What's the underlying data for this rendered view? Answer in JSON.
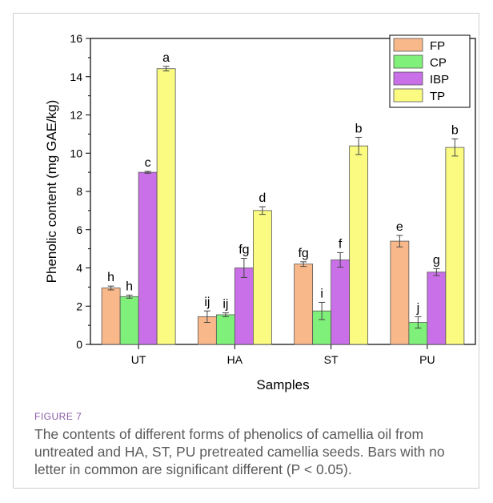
{
  "figure": {
    "label": "FIGURE 7",
    "caption": "The contents of different forms of phenolics of camellia oil from untreated and HA, ST, PU pretreated camellia seeds. Bars with no letter in common are significant different (P < 0.05)."
  },
  "chart_data": {
    "type": "bar",
    "xlabel": "Samples",
    "ylabel": "Phenolic content (mg GAE/kg)",
    "ylim": [
      0,
      16
    ],
    "yticks": [
      0,
      2,
      4,
      6,
      8,
      10,
      12,
      14,
      16
    ],
    "categories": [
      "UT",
      "HA",
      "ST",
      "PU"
    ],
    "legend_position": "top-right",
    "grid": false,
    "series": [
      {
        "name": "FP",
        "color": "#f9b88a",
        "values": [
          2.95,
          1.45,
          4.2,
          5.4
        ],
        "errors": [
          0.1,
          0.3,
          0.12,
          0.3
        ],
        "letters": [
          "h",
          "ij",
          "fg",
          "e"
        ]
      },
      {
        "name": "CP",
        "color": "#7ff07a",
        "values": [
          2.5,
          1.55,
          1.75,
          1.15
        ],
        "errors": [
          0.08,
          0.1,
          0.45,
          0.3
        ],
        "letters": [
          "h",
          "ij",
          "i",
          "j"
        ]
      },
      {
        "name": "IBP",
        "color": "#c96fe8",
        "values": [
          9.0,
          4.0,
          4.42,
          3.78
        ],
        "errors": [
          0.05,
          0.5,
          0.38,
          0.18
        ],
        "letters": [
          "c",
          "fg",
          "f",
          "g"
        ]
      },
      {
        "name": "TP",
        "color": "#fbfb82",
        "values": [
          14.42,
          7.0,
          10.38,
          10.3
        ],
        "errors": [
          0.12,
          0.2,
          0.45,
          0.45
        ],
        "letters": [
          "a",
          "d",
          "b",
          "b"
        ]
      }
    ]
  }
}
